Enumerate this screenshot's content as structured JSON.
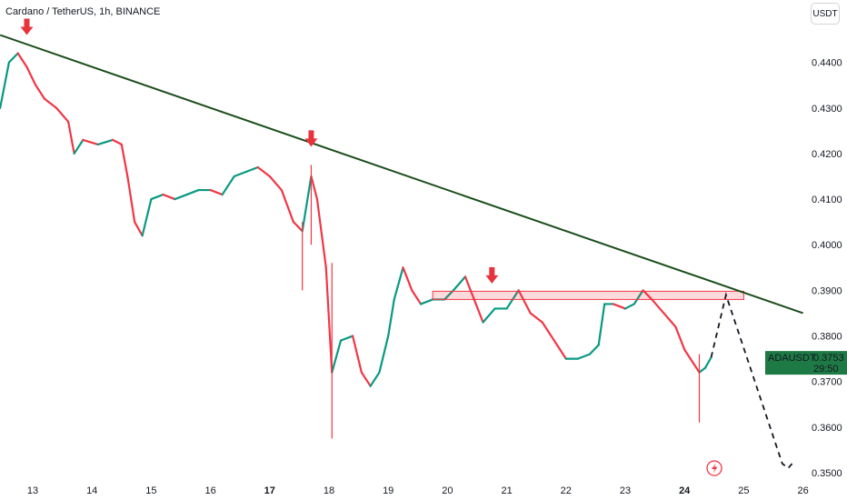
{
  "header": {
    "title": "Cardano / TetherUS, 1h, BINANCE",
    "currency_button": "USDT"
  },
  "price_label": {
    "symbol": "ADAUSDT",
    "price": "0.3753",
    "countdown": "29:50",
    "value": 0.3753
  },
  "colors": {
    "up": "#089981",
    "down": "#f23645",
    "trendline": "#1b4d1b",
    "zone": "#f23645",
    "arrow": "#e8333d",
    "label_bg": "#1e7a45"
  },
  "chart_data": {
    "type": "candlestick",
    "title": "Cardano / TetherUS, 1h, BINANCE",
    "ylim": [
      0.35,
      0.4485
    ],
    "y_ticks": [
      "0.4400",
      "0.4300",
      "0.4200",
      "0.4100",
      "0.4000",
      "0.3900",
      "0.3800",
      "0.3700",
      "0.3600",
      "0.3500"
    ],
    "x_ticks": [
      {
        "label": "13",
        "day": 13,
        "bold": false
      },
      {
        "label": "14",
        "day": 14,
        "bold": false
      },
      {
        "label": "15",
        "day": 15,
        "bold": false
      },
      {
        "label": "16",
        "day": 16,
        "bold": false
      },
      {
        "label": "17",
        "day": 17,
        "bold": true
      },
      {
        "label": "18",
        "day": 18,
        "bold": false
      },
      {
        "label": "19",
        "day": 19,
        "bold": false
      },
      {
        "label": "20",
        "day": 20,
        "bold": false
      },
      {
        "label": "21",
        "day": 21,
        "bold": false
      },
      {
        "label": "22",
        "day": 22,
        "bold": false
      },
      {
        "label": "23",
        "day": 23,
        "bold": false
      },
      {
        "label": "24",
        "day": 24,
        "bold": true
      },
      {
        "label": "25",
        "day": 25,
        "bold": false
      },
      {
        "label": "26",
        "day": 26,
        "bold": false
      }
    ],
    "price_path": [
      [
        12.45,
        0.43
      ],
      [
        12.6,
        0.44
      ],
      [
        12.75,
        0.442
      ],
      [
        12.9,
        0.439
      ],
      [
        13.05,
        0.435
      ],
      [
        13.2,
        0.432
      ],
      [
        13.4,
        0.43
      ],
      [
        13.6,
        0.427
      ],
      [
        13.7,
        0.42
      ],
      [
        13.85,
        0.423
      ],
      [
        14.1,
        0.422
      ],
      [
        14.35,
        0.423
      ],
      [
        14.5,
        0.422
      ],
      [
        14.6,
        0.415
      ],
      [
        14.72,
        0.405
      ],
      [
        14.85,
        0.402
      ],
      [
        15.0,
        0.41
      ],
      [
        15.2,
        0.411
      ],
      [
        15.4,
        0.41
      ],
      [
        15.6,
        0.411
      ],
      [
        15.8,
        0.412
      ],
      [
        16.0,
        0.412
      ],
      [
        16.2,
        0.411
      ],
      [
        16.4,
        0.415
      ],
      [
        16.6,
        0.416
      ],
      [
        16.8,
        0.417
      ],
      [
        17.0,
        0.415
      ],
      [
        17.2,
        0.412
      ],
      [
        17.4,
        0.405
      ],
      [
        17.55,
        0.403
      ],
      [
        17.7,
        0.415
      ],
      [
        17.8,
        0.41
      ],
      [
        17.95,
        0.395
      ],
      [
        18.05,
        0.372
      ],
      [
        18.2,
        0.379
      ],
      [
        18.4,
        0.38
      ],
      [
        18.55,
        0.372
      ],
      [
        18.7,
        0.369
      ],
      [
        18.85,
        0.372
      ],
      [
        19.0,
        0.38
      ],
      [
        19.1,
        0.388
      ],
      [
        19.25,
        0.395
      ],
      [
        19.4,
        0.39
      ],
      [
        19.55,
        0.387
      ],
      [
        19.75,
        0.388
      ],
      [
        19.95,
        0.388
      ],
      [
        20.1,
        0.39
      ],
      [
        20.3,
        0.393
      ],
      [
        20.45,
        0.388
      ],
      [
        20.6,
        0.383
      ],
      [
        20.8,
        0.386
      ],
      [
        21.0,
        0.386
      ],
      [
        21.2,
        0.39
      ],
      [
        21.4,
        0.385
      ],
      [
        21.6,
        0.383
      ],
      [
        21.8,
        0.379
      ],
      [
        22.0,
        0.375
      ],
      [
        22.2,
        0.375
      ],
      [
        22.4,
        0.376
      ],
      [
        22.55,
        0.378
      ],
      [
        22.65,
        0.387
      ],
      [
        22.8,
        0.387
      ],
      [
        23.0,
        0.386
      ],
      [
        23.15,
        0.387
      ],
      [
        23.3,
        0.39
      ],
      [
        23.45,
        0.388
      ],
      [
        23.65,
        0.385
      ],
      [
        23.85,
        0.382
      ],
      [
        24.0,
        0.377
      ],
      [
        24.15,
        0.374
      ],
      [
        24.25,
        0.372
      ],
      [
        24.35,
        0.373
      ],
      [
        24.45,
        0.3753
      ]
    ],
    "wicks": [
      {
        "day": 17.7,
        "high": 0.4175,
        "low": 0.4
      },
      {
        "day": 17.55,
        "high": 0.405,
        "low": 0.39
      },
      {
        "day": 18.05,
        "high": 0.396,
        "low": 0.3575
      },
      {
        "day": 24.25,
        "high": 0.376,
        "low": 0.361
      }
    ],
    "trendline": [
      [
        12.45,
        0.446
      ],
      [
        26.0,
        0.385
      ]
    ],
    "resistance_zone": {
      "day_start": 19.75,
      "day_end": 25.0,
      "top": 0.3898,
      "bottom": 0.388
    },
    "projection": [
      [
        24.45,
        0.3753
      ],
      [
        24.7,
        0.389
      ],
      [
        25.65,
        0.352
      ],
      [
        25.75,
        0.351
      ],
      [
        25.85,
        0.3525
      ]
    ],
    "arrows": [
      [
        12.9,
        0.446
      ],
      [
        17.7,
        0.4215
      ],
      [
        20.75,
        0.3915
      ]
    ]
  }
}
